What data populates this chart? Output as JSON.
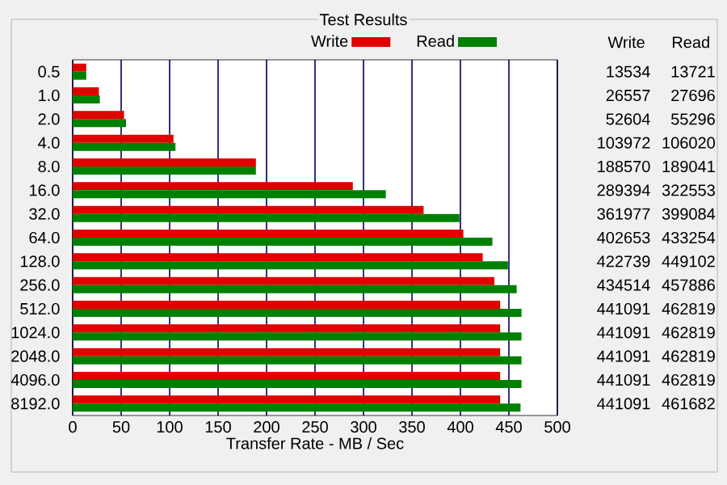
{
  "chart_data": {
    "type": "bar",
    "orientation": "horizontal",
    "title": "Test Results",
    "xlabel": "Transfer Rate - MB / Sec",
    "categories": [
      "0.5",
      "1.0",
      "2.0",
      "4.0",
      "8.0",
      "16.0",
      "32.0",
      "64.0",
      "128.0",
      "256.0",
      "512.0",
      "1024.0",
      "2048.0",
      "4096.0",
      "8192.0"
    ],
    "series": [
      {
        "name": "Write",
        "color": "#e00000",
        "values": [
          14,
          27,
          53,
          104,
          189,
          289,
          362,
          403,
          423,
          435,
          441,
          441,
          441,
          441,
          441
        ]
      },
      {
        "name": "Read",
        "color": "#008000",
        "values": [
          14,
          28,
          55,
          106,
          189,
          323,
          399,
          433,
          449,
          458,
          463,
          463,
          463,
          463,
          462
        ]
      }
    ],
    "annotations": [
      "Write",
      "Read",
      "13534",
      "13721",
      "26557",
      "27696",
      "52604",
      "55296",
      "103972",
      "106020",
      "188570",
      "189041",
      "289394",
      "322553",
      "361977",
      "399084",
      "402653",
      "433254",
      "422739",
      "449102",
      "434514",
      "457886",
      "441091",
      "462819",
      "441091",
      "462819",
      "441091",
      "462819",
      "441091",
      "462819",
      "441091",
      "461682"
    ],
    "xlim": [
      0,
      500
    ],
    "xticks": [
      0,
      50,
      100,
      150,
      200,
      250,
      300,
      350,
      400,
      450,
      500
    ],
    "grid": "x",
    "legend": "top"
  }
}
